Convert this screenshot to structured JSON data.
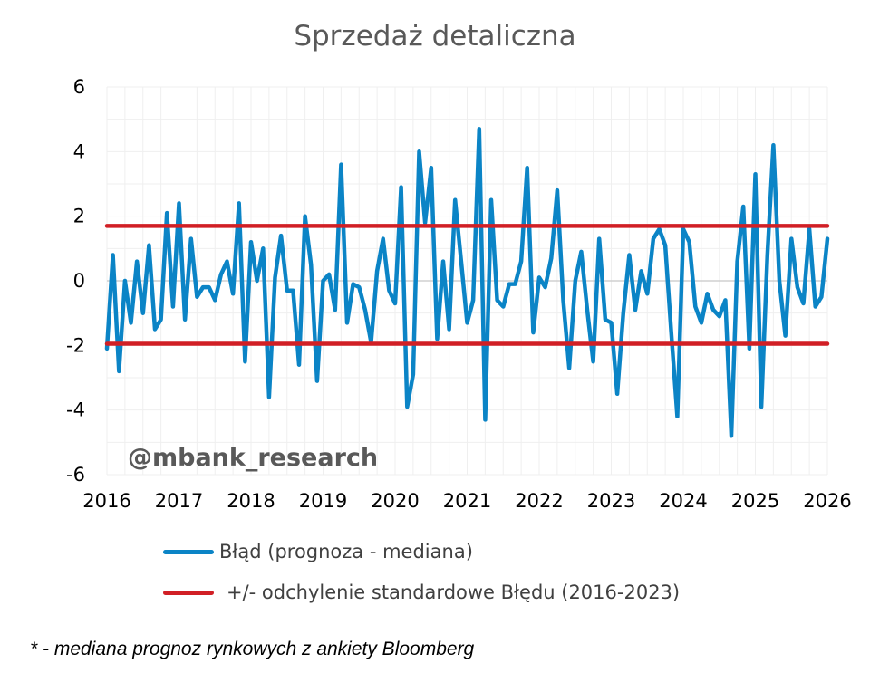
{
  "chart_data": {
    "type": "line",
    "title": "Sprzedaż detaliczna",
    "xlabel": "",
    "ylabel": "",
    "xlim": [
      2016,
      2026
    ],
    "ylim": [
      -6,
      6
    ],
    "x_ticks": [
      "2016",
      "2017",
      "2018",
      "2019",
      "2020",
      "2021",
      "2022",
      "2023",
      "2024",
      "2025",
      "2026"
    ],
    "y_ticks": [
      "6",
      "4",
      "2",
      "0",
      "-2",
      "-4",
      "-6"
    ],
    "grid": "vertical and horizontal light gray",
    "legend_position": "bottom",
    "series": [
      {
        "name": "Błąd (prognoza - mediana)",
        "color": "#0b84c6",
        "x_start": "2016-01",
        "frequency": "monthly",
        "values": [
          -2.1,
          0.8,
          -2.8,
          0.0,
          -1.3,
          0.6,
          -1.0,
          1.1,
          -1.5,
          -1.2,
          2.1,
          -0.8,
          2.4,
          -1.2,
          1.3,
          -0.5,
          -0.2,
          -0.2,
          -0.6,
          0.2,
          0.6,
          -0.4,
          2.4,
          -2.5,
          1.2,
          0.0,
          1.0,
          -3.6,
          0.1,
          1.4,
          -0.3,
          -0.3,
          -2.6,
          2.0,
          0.5,
          -3.1,
          0.0,
          0.2,
          -0.9,
          3.6,
          -1.3,
          -0.1,
          -0.2,
          -0.9,
          -1.9,
          0.3,
          1.3,
          -0.3,
          -0.7,
          2.9,
          -3.9,
          -2.9,
          4.0,
          1.8,
          3.5,
          -1.8,
          0.6,
          -1.5,
          2.5,
          0.6,
          -1.3,
          -0.6,
          4.7,
          -4.3,
          2.5,
          -0.6,
          -0.8,
          -0.1,
          -0.1,
          0.6,
          3.5,
          -1.6,
          0.1,
          -0.2,
          0.7,
          2.8,
          -0.6,
          -2.7,
          0.0,
          0.9,
          -0.9,
          -2.5,
          1.3,
          -1.2,
          -1.3,
          -3.5,
          -1.0,
          0.8,
          -0.9,
          0.3,
          -0.4,
          1.3,
          1.6,
          1.1,
          -1.6,
          -4.2,
          1.6,
          1.2,
          -0.8,
          -1.3,
          -0.4,
          -0.9,
          -1.1,
          -0.6,
          -4.8,
          0.6,
          2.3,
          -2.1,
          3.3,
          -3.9,
          0.8,
          4.2,
          0.0,
          -1.7,
          1.3,
          -0.2,
          -0.7,
          1.6,
          -0.8,
          -0.5,
          1.3
        ]
      },
      {
        "name": "+/- odchylenie standardowe Błędu (2016-2023)",
        "color": "#d11f25",
        "bands": [
          1.7,
          -1.95
        ]
      }
    ],
    "watermark": "@mbank_research"
  },
  "footnote": "* - mediana prognoz rynkowych z ankiety Bloomberg"
}
